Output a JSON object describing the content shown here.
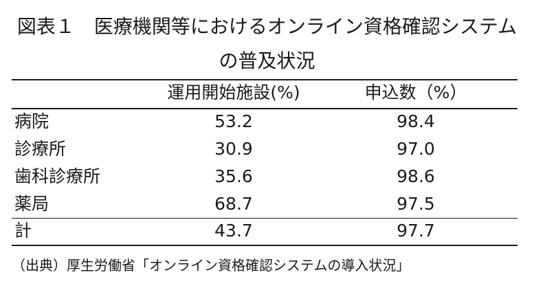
{
  "title": {
    "line1": "図表１　医療機関等におけるオンライン資格確認システム",
    "line2": "の普及状況"
  },
  "table": {
    "headers": [
      "",
      "運用開始施設(%)",
      "申込数（%）"
    ],
    "rows": [
      {
        "label": "病院",
        "operational": "53.2",
        "applications": "98.4"
      },
      {
        "label": "診療所",
        "operational": "30.9",
        "applications": "97.0"
      },
      {
        "label": "歯科診療所",
        "operational": "35.6",
        "applications": "98.6"
      },
      {
        "label": "薬局",
        "operational": "68.7",
        "applications": "97.5"
      },
      {
        "label": "計",
        "operational": "43.7",
        "applications": "97.7"
      }
    ]
  },
  "source": "（出典）厚生労働省「オンライン資格確認システムの導入状況」"
}
